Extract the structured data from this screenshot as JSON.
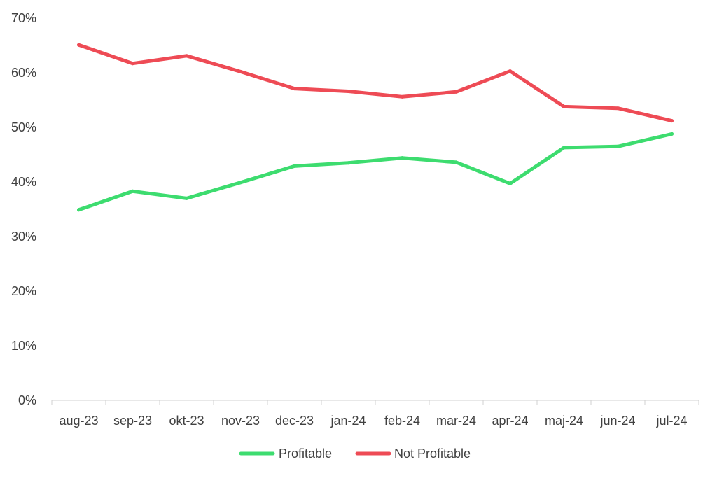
{
  "chart_data": {
    "type": "line",
    "title": "",
    "xlabel": "",
    "ylabel": "",
    "categories": [
      "aug-23",
      "sep-23",
      "okt-23",
      "nov-23",
      "dec-23",
      "jan-24",
      "feb-24",
      "mar-24",
      "apr-24",
      "maj-24",
      "jun-24",
      "jul-24"
    ],
    "y_ticks": [
      "0%",
      "10%",
      "20%",
      "30%",
      "40%",
      "50%",
      "60%",
      "70%"
    ],
    "ylim": [
      0,
      70
    ],
    "y_unit": "%",
    "grid": false,
    "legend_position": "bottom",
    "series": [
      {
        "name": "Profitable",
        "color": "#3ddc6f",
        "values": [
          34.9,
          38.3,
          37.0,
          39.9,
          42.9,
          43.5,
          44.4,
          43.6,
          39.7,
          46.3,
          46.5,
          48.8
        ]
      },
      {
        "name": "Not Profitable",
        "color": "#ee4b55",
        "values": [
          65.1,
          61.7,
          63.1,
          60.2,
          57.1,
          56.6,
          55.6,
          56.5,
          60.3,
          53.8,
          53.5,
          51.2
        ]
      }
    ]
  }
}
